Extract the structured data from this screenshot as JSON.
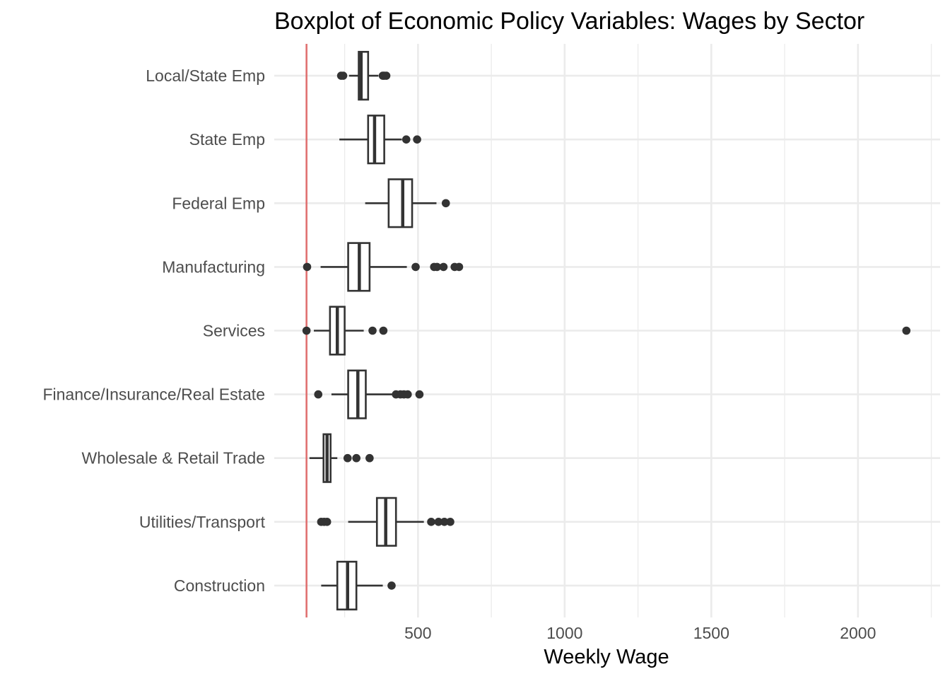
{
  "chart_data": {
    "type": "boxplot",
    "title": "Boxplot of Economic Policy Variables: Wages by Sector",
    "xlabel": "Weekly Wage",
    "ylabel": "",
    "xlim": [
      10,
      2280
    ],
    "x_ticks": [
      500,
      1000,
      1500,
      2000
    ],
    "x_minor_ticks": [
      250,
      750,
      1250,
      1750,
      2250
    ],
    "grid": true,
    "reference_line": {
      "x": 120,
      "color": "#e07070"
    },
    "categories": [
      "Local/State Emp",
      "State Emp",
      "Federal Emp",
      "Manufacturing",
      "Services",
      "Finance/Insurance/Real Estate",
      "Wholesale & Retail Trade",
      "Utilities/Transport",
      "Construction"
    ],
    "boxes": [
      {
        "category": "Local/State Emp",
        "whisker_low": 265,
        "q1": 298,
        "median": 306,
        "q3": 330,
        "whisker_high": 365,
        "outliers": [
          238,
          245,
          380,
          385,
          392
        ]
      },
      {
        "category": "State Emp",
        "whisker_low": 232,
        "q1": 330,
        "median": 352,
        "q3": 385,
        "whisker_high": 445,
        "outliers": [
          460,
          497
        ]
      },
      {
        "category": "Federal Emp",
        "whisker_low": 320,
        "q1": 400,
        "median": 448,
        "q3": 480,
        "whisker_high": 563,
        "outliers": [
          595
        ]
      },
      {
        "category": "Manufacturing",
        "whisker_low": 168,
        "q1": 262,
        "median": 300,
        "q3": 335,
        "whisker_high": 462,
        "outliers": [
          122,
          492,
          555,
          565,
          587,
          625,
          640
        ]
      },
      {
        "category": "Services",
        "whisker_low": 145,
        "q1": 200,
        "median": 225,
        "q3": 250,
        "whisker_high": 315,
        "outliers": [
          120,
          345,
          382,
          2165
        ]
      },
      {
        "category": "Finance/Insurance/Real Estate",
        "whisker_low": 205,
        "q1": 262,
        "median": 295,
        "q3": 322,
        "whisker_high": 415,
        "outliers": [
          160,
          425,
          440,
          452,
          465,
          505
        ]
      },
      {
        "category": "Wholesale & Retail Trade",
        "whisker_low": 130,
        "q1": 178,
        "median": 190,
        "q3": 202,
        "whisker_high": 225,
        "outliers": [
          260,
          290,
          335
        ]
      },
      {
        "category": "Utilities/Transport",
        "whisker_low": 262,
        "q1": 360,
        "median": 390,
        "q3": 425,
        "whisker_high": 520,
        "outliers": [
          170,
          180,
          190,
          545,
          570,
          590,
          610
        ]
      },
      {
        "category": "Construction",
        "whisker_low": 170,
        "q1": 225,
        "median": 260,
        "q3": 290,
        "whisker_high": 380,
        "outliers": [
          410
        ]
      }
    ]
  }
}
